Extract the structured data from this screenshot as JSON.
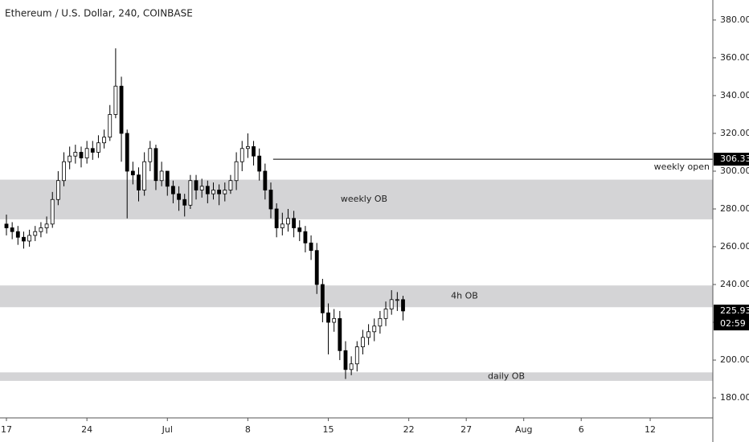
{
  "chart_data": {
    "type": "candlestick",
    "title": "Ethereum / U.S. Dollar, 240, COINBASE",
    "open": [
      272,
      270,
      268,
      265,
      263,
      266,
      268,
      270,
      272,
      285,
      295,
      305,
      308,
      310,
      307,
      312,
      310,
      315,
      318,
      330,
      345,
      320,
      300,
      298,
      290,
      305,
      312,
      295,
      300,
      292,
      288,
      285,
      282,
      295,
      290,
      292,
      288,
      290,
      288,
      290,
      295,
      305,
      312,
      313,
      308,
      300,
      290,
      280,
      270,
      272,
      275,
      270,
      268,
      262,
      258,
      240,
      225,
      220,
      222,
      205,
      195,
      198,
      207,
      212,
      215,
      218,
      222,
      227,
      232,
      232
    ],
    "high": [
      277,
      273,
      271,
      268,
      269,
      271,
      273,
      276,
      289,
      300,
      310,
      313,
      314,
      313,
      316,
      316,
      319,
      322,
      335,
      365,
      350,
      322,
      305,
      302,
      310,
      316,
      314,
      305,
      300,
      295,
      292,
      288,
      298,
      298,
      296,
      295,
      294,
      293,
      294,
      298,
      310,
      316,
      320,
      316,
      312,
      304,
      294,
      283,
      278,
      280,
      279,
      274,
      271,
      266,
      262,
      243,
      230,
      227,
      226,
      210,
      202,
      210,
      216,
      219,
      222,
      226,
      231,
      237,
      236,
      234
    ],
    "low": [
      266,
      264,
      261,
      259,
      260,
      263,
      265,
      267,
      270,
      282,
      292,
      301,
      304,
      302,
      304,
      306,
      307,
      312,
      316,
      328,
      305,
      275,
      293,
      284,
      287,
      300,
      290,
      292,
      287,
      283,
      279,
      276,
      280,
      285,
      286,
      283,
      285,
      282,
      284,
      288,
      290,
      300,
      307,
      303,
      295,
      285,
      275,
      265,
      266,
      268,
      265,
      263,
      257,
      253,
      235,
      220,
      203,
      215,
      200,
      190,
      192,
      194,
      203,
      208,
      210,
      214,
      218,
      224,
      226,
      221
    ],
    "close": [
      270,
      268,
      265,
      263,
      266,
      268,
      270,
      272,
      285,
      295,
      305,
      308,
      310,
      307,
      312,
      310,
      315,
      318,
      330,
      345,
      320,
      300,
      298,
      290,
      305,
      312,
      295,
      300,
      292,
      288,
      285,
      282,
      295,
      290,
      292,
      288,
      290,
      288,
      290,
      295,
      305,
      312,
      313,
      308,
      300,
      290,
      280,
      270,
      272,
      275,
      270,
      268,
      262,
      258,
      240,
      225,
      220,
      222,
      205,
      195,
      198,
      207,
      212,
      215,
      218,
      222,
      227,
      232,
      232,
      226
    ],
    "xlim": [
      -1.12,
      122.9
    ],
    "xticks": [
      {
        "value": 0,
        "label": "17"
      },
      {
        "value": 14,
        "label": "24"
      },
      {
        "value": 28,
        "label": "Jul"
      },
      {
        "value": 42,
        "label": "8"
      },
      {
        "value": 56,
        "label": "15"
      },
      {
        "value": 70,
        "label": "22"
      },
      {
        "value": 80,
        "label": "27"
      },
      {
        "value": 90,
        "label": "Aug"
      },
      {
        "value": 100,
        "label": "6"
      },
      {
        "value": 112,
        "label": "12"
      }
    ],
    "ylim": [
      169.4,
      390.6
    ],
    "yticks": [
      {
        "value": 180,
        "label": "180.00"
      },
      {
        "value": 200,
        "label": "200.00"
      },
      {
        "value": 220,
        "label": "220.00"
      },
      {
        "value": 240,
        "label": "240.00"
      },
      {
        "value": 260,
        "label": "260.00"
      },
      {
        "value": 280,
        "label": "280.00"
      },
      {
        "value": 300,
        "label": "300.00"
      },
      {
        "value": 320,
        "label": "320.00"
      },
      {
        "value": 340,
        "label": "340.00"
      },
      {
        "value": 360,
        "label": "360.00"
      },
      {
        "value": 380,
        "label": "380.00"
      }
    ],
    "zones": [
      {
        "range": [
          274.5,
          295.5
        ],
        "label": "weekly OB"
      },
      {
        "range": [
          228,
          239.5
        ],
        "label": "4h OB"
      },
      {
        "range": [
          189,
          193.5
        ],
        "label": "daily OB"
      }
    ],
    "level": {
      "value": 306.33,
      "start": 46.4,
      "label": "weekly open"
    },
    "last_price": 225.93,
    "countdown": "02:59"
  }
}
